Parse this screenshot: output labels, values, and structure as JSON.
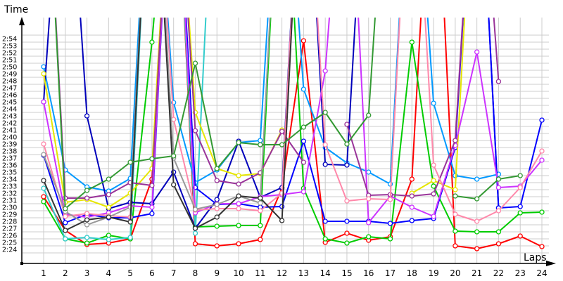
{
  "chart_data": {
    "type": "line",
    "title": "",
    "xlabel": "Laps",
    "ylabel": "Time",
    "x": [
      1,
      2,
      3,
      4,
      5,
      6,
      7,
      8,
      9,
      10,
      11,
      12,
      13,
      14,
      15,
      16,
      17,
      18,
      19,
      20,
      21,
      22,
      23,
      24
    ],
    "y_tick_labels": [
      "2:24",
      "2:25",
      "2:26",
      "2:27",
      "2:28",
      "2:29",
      "2:30",
      "2:31",
      "2:32",
      "2:33",
      "2:34",
      "2:35",
      "2:36",
      "2:37",
      "2:38",
      "2:39",
      "2:40",
      "2:41",
      "2:42",
      "2:43",
      "2:44",
      "2:45",
      "2:46",
      "2:47",
      "2:48",
      "2:49",
      "2:50",
      "2:51",
      "2:52",
      "2:53",
      "2:54"
    ],
    "ylim_seconds_after_2min": [
      144,
      174
    ],
    "value_units": "seconds after 2:00 (values above 180 are off the top of the plot)",
    "grid": true,
    "legend": "none",
    "series": [
      {
        "name": "red",
        "color": "#ff0000",
        "values": [
          152.0,
          147.2,
          145.2,
          145.4,
          146.0,
          154.5,
          210,
          145.3,
          145.0,
          145.3,
          145.9,
          153.2,
          174.2,
          145.5,
          146.8,
          145.8,
          146.3,
          154.5,
          210,
          145.0,
          144.6,
          145.3,
          146.4,
          144.9
        ]
      },
      {
        "name": "green",
        "color": "#00cc00",
        "values": [
          151.3,
          146.0,
          145.4,
          146.5,
          146.0,
          174.0,
          210,
          147.7,
          147.8,
          147.9,
          147.9,
          210,
          153.2,
          146.0,
          145.4,
          146.3,
          146.0,
          174.0,
          153.5,
          147.1,
          147.0,
          147.0,
          149.7,
          149.8
        ]
      },
      {
        "name": "cyan",
        "color": "#33cccc",
        "values": [
          153.2,
          146.0,
          146.2,
          145.9,
          146.2,
          210,
          210,
          146.8,
          210,
          null,
          null,
          null,
          null,
          null,
          null,
          null,
          null,
          null,
          null,
          null,
          null,
          null,
          null,
          null
        ]
      },
      {
        "name": "light-blue",
        "color": "#0099ff",
        "values": [
          170.5,
          155.8,
          153.4,
          152.8,
          154.6,
          210,
          165.4,
          154.0,
          155.8,
          159.7,
          160.0,
          210,
          167.3,
          159.0,
          156.8,
          155.5,
          153.8,
          210,
          165.3,
          155.0,
          154.5,
          155.2,
          null,
          null
        ]
      },
      {
        "name": "dark-blue",
        "color": "#0000bb",
        "values": [
          165.5,
          210,
          163.5,
          150.3,
          151.2,
          151.0,
          155.5,
          147.5,
          151.6,
          159.9,
          151.9,
          153.3,
          210,
          156.6,
          156.5,
          210,
          210,
          210,
          210,
          210,
          210,
          150.4,
          null,
          null
        ]
      },
      {
        "name": "blue",
        "color": "#0000ff",
        "values": [
          157.9,
          148.3,
          149.5,
          149.0,
          149.0,
          149.6,
          210,
          153.3,
          150.9,
          151.0,
          150.5,
          150.6,
          159.9,
          148.5,
          148.5,
          148.5,
          148.2,
          148.6,
          148.9,
          159.0,
          210,
          150.4,
          150.6,
          162.9
        ]
      },
      {
        "name": "yellow",
        "color": "#e6e600",
        "values": [
          169.5,
          151.2,
          151.6,
          150.5,
          152.5,
          156.0,
          210,
          164.0,
          156.0,
          155.0,
          155.3,
          161.5,
          null,
          null,
          null,
          null,
          null,
          152.5,
          154.3,
          153.0,
          210,
          null,
          null,
          null
        ]
      },
      {
        "name": "magenta",
        "color": "#cc33ff",
        "values": [
          165.5,
          149.5,
          149.1,
          149.7,
          150.7,
          150.5,
          210,
          149.7,
          151.0,
          151.0,
          152.0,
          152.3,
          152.7,
          169.9,
          210,
          148.3,
          152.1,
          150.5,
          149.2,
          159.3,
          172.6,
          153.3,
          153.5,
          157.2
        ]
      },
      {
        "name": "purple",
        "color": "#993399",
        "values": [
          210,
          151.8,
          151.8,
          152.3,
          154.0,
          153.6,
          210,
          161.4,
          154.3,
          153.8,
          155.4,
          161.3,
          156.9,
          null,
          162.3,
          152.2,
          152.3,
          152.1,
          152.4,
          160.0,
          210,
          168.4,
          null,
          null
        ]
      },
      {
        "name": "pink",
        "color": "#ff88aa",
        "values": [
          159.5,
          149.2,
          149.6,
          149.3,
          149.1,
          210,
          163.0,
          150.1,
          150.3,
          150.3,
          150.0,
          152.5,
          210,
          159.4,
          151.4,
          151.7,
          151.6,
          210,
          156.5,
          149.5,
          148.5,
          150.0,
          153.3,
          158.5
        ]
      },
      {
        "name": "gray",
        "color": "#999999",
        "values": [
          158.0,
          149.9,
          148.0,
          149.1,
          150.5,
          210,
          157.5,
          150.2,
          150.9,
          152.1,
          151.1,
          210,
          null,
          null,
          null,
          null,
          null,
          null,
          null,
          null,
          null,
          null,
          null,
          null
        ]
      },
      {
        "name": "dark-gray",
        "color": "#333333",
        "values": [
          154.3,
          147.2,
          148.7,
          149.1,
          148.4,
          210,
          153.7,
          147.5,
          149.1,
          152.1,
          151.8,
          148.6,
          210,
          null,
          null,
          null,
          null,
          null,
          null,
          null,
          null,
          null,
          null,
          null
        ]
      },
      {
        "name": "dark-green",
        "color": "#339933",
        "values": [
          210,
          150.3,
          152.9,
          154.5,
          156.9,
          157.4,
          157.8,
          171.0,
          156.0,
          159.7,
          159.4,
          159.4,
          161.9,
          164.0,
          159.5,
          163.6,
          210,
          210,
          null,
          152.1,
          151.7,
          154.5,
          155.0,
          null
        ]
      }
    ]
  },
  "axes": {
    "y_title": "Time",
    "x_title": "Laps"
  }
}
